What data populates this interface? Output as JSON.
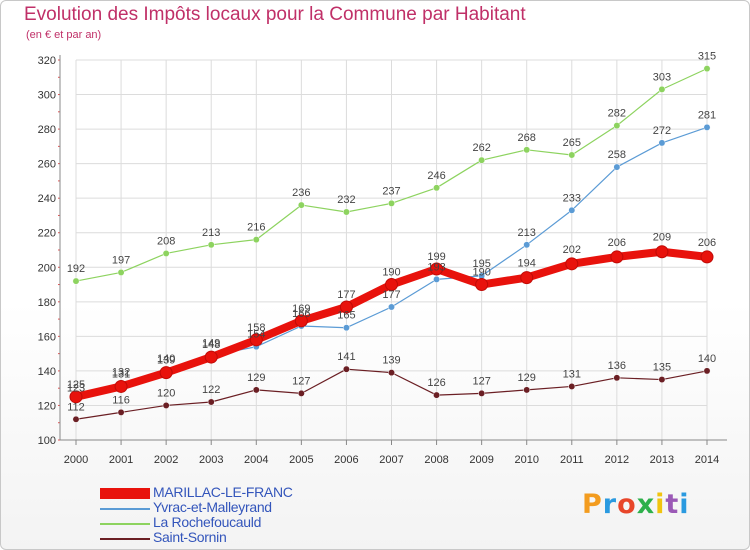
{
  "title": "Evolution des Impôts locaux pour la Commune par Habitant",
  "subtitle": "(en € et par an)",
  "logo": "Proxiti",
  "chart_data": {
    "type": "line",
    "x": [
      "2000",
      "2001",
      "2002",
      "2003",
      "2004",
      "2005",
      "2006",
      "2007",
      "2008",
      "2009",
      "2010",
      "2011",
      "2012",
      "2013",
      "2014"
    ],
    "ylim": [
      100,
      320
    ],
    "yticks": [
      100,
      120,
      140,
      160,
      180,
      200,
      220,
      240,
      260,
      280,
      300,
      320
    ],
    "grid": true,
    "legend_position": "bottom-left",
    "series": [
      {
        "name": "MARILLAC-LE-FRANC",
        "color": "#e8120c",
        "values": [
          125,
          131,
          139,
          148,
          158,
          169,
          177,
          190,
          199,
          190,
          194,
          202,
          206,
          209,
          206
        ]
      },
      {
        "name": "Yvrac-et-Malleyrand",
        "color": "#5b9bd5",
        "values": [
          123,
          132,
          140,
          149,
          154,
          166,
          165,
          177,
          193,
          195,
          213,
          233,
          258,
          272,
          281
        ]
      },
      {
        "name": "La Rochefoucauld",
        "color": "#8dd35f",
        "values": [
          192,
          197,
          208,
          213,
          216,
          236,
          232,
          237,
          246,
          262,
          268,
          265,
          282,
          303,
          315
        ]
      },
      {
        "name": "Saint-Sornin",
        "color": "#6b1f24",
        "values": [
          112,
          116,
          120,
          122,
          129,
          127,
          141,
          139,
          126,
          127,
          129,
          131,
          136,
          135,
          140
        ]
      }
    ]
  }
}
